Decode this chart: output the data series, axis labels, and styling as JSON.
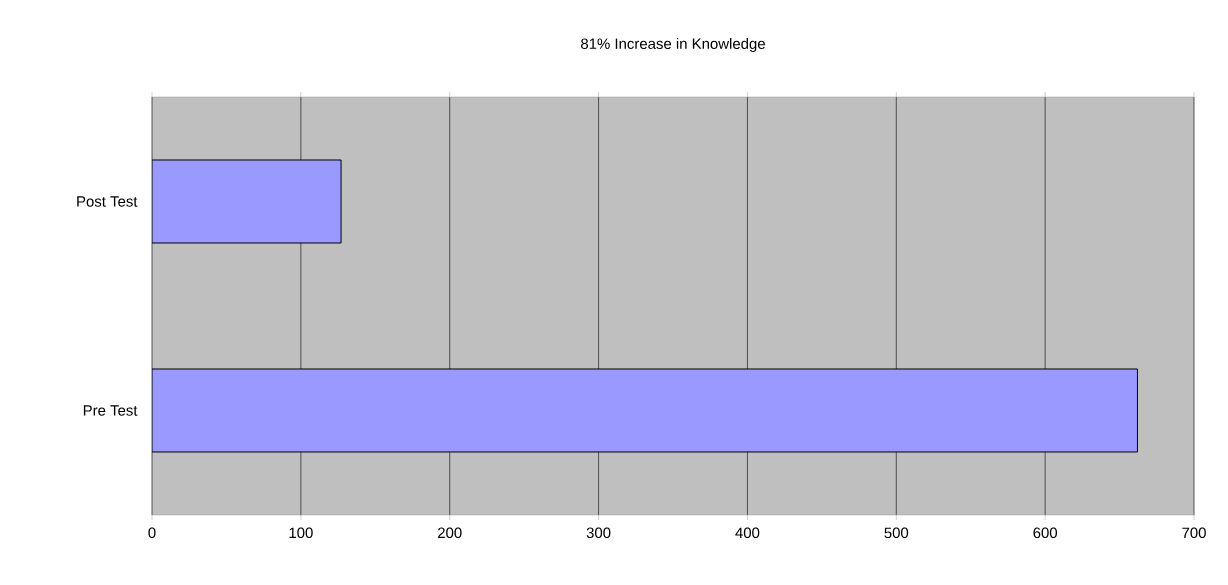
{
  "chart_data": {
    "type": "bar",
    "orientation": "horizontal",
    "title": "81% Increase in Knowledge",
    "categories": [
      "Post Test",
      "Pre Test"
    ],
    "values": [
      127,
      662
    ],
    "color": "#9999ff",
    "xlim": [
      0,
      700
    ],
    "xticks": [
      0,
      100,
      200,
      300,
      400,
      500,
      600,
      700
    ],
    "grid": "x"
  }
}
